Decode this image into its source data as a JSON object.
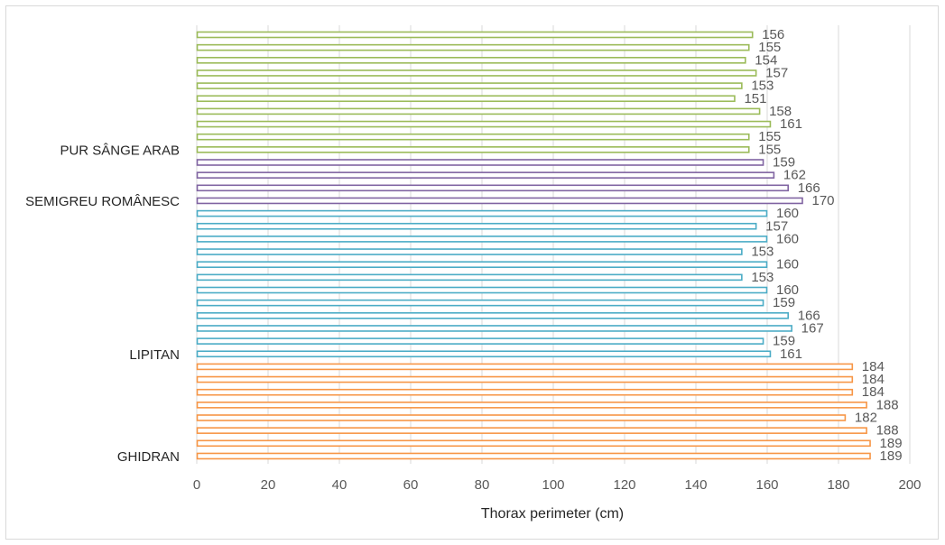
{
  "chart_data": {
    "type": "bar",
    "orientation": "horizontal",
    "xlabel": "Thorax perimeter (cm)",
    "ylabel": "",
    "xlim": [
      0,
      200
    ],
    "x_ticks": [
      0,
      20,
      40,
      60,
      80,
      100,
      120,
      140,
      160,
      180,
      200
    ],
    "grid": true,
    "groups": [
      {
        "name": "PUR SÂNGE ARAB",
        "color": "#9bbb59",
        "values": [
          156,
          155,
          154,
          157,
          153,
          151,
          158,
          161,
          155,
          155
        ]
      },
      {
        "name": "SEMIGREU ROMÂNESC",
        "color": "#8064a2",
        "values": [
          159,
          162,
          166,
          170
        ]
      },
      {
        "name": "LIPITAN",
        "color": "#4bacc6",
        "values": [
          160,
          157,
          160,
          153,
          160,
          153,
          160,
          159,
          166,
          167,
          159,
          161
        ]
      },
      {
        "name": "GHIDRAN",
        "color": "#f79646",
        "values": [
          184,
          184,
          184,
          188,
          182,
          188,
          189,
          189
        ]
      }
    ]
  }
}
